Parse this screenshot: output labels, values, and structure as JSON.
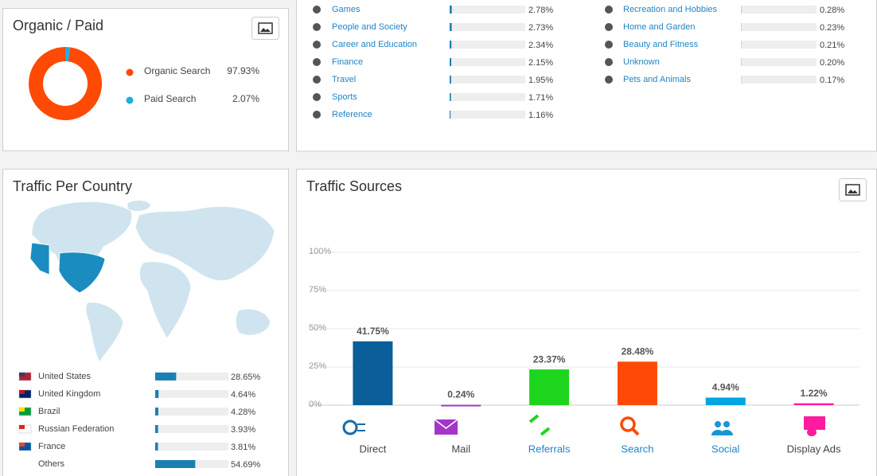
{
  "organic_paid": {
    "title": "Organic / Paid",
    "items": [
      {
        "name": "Organic Search",
        "value": 97.93,
        "value_label": "97.93%",
        "color": "#ff4a05"
      },
      {
        "name": "Paid Search",
        "value": 2.07,
        "value_label": "2.07%",
        "color": "#1ab0e0"
      }
    ]
  },
  "categories": {
    "color": "#1b7fb5",
    "columns": [
      [
        {
          "name": "Games",
          "value": 2.78,
          "value_label": "2.78%"
        },
        {
          "name": "People and Society",
          "value": 2.73,
          "value_label": "2.73%"
        },
        {
          "name": "Career and Education",
          "value": 2.34,
          "value_label": "2.34%"
        },
        {
          "name": "Finance",
          "value": 2.15,
          "value_label": "2.15%"
        },
        {
          "name": "Travel",
          "value": 1.95,
          "value_label": "1.95%"
        },
        {
          "name": "Sports",
          "value": 1.71,
          "value_label": "1.71%"
        },
        {
          "name": "Reference",
          "value": 1.16,
          "value_label": "1.16%"
        }
      ],
      [
        {
          "name": "Recreation and Hobbies",
          "value": 0.28,
          "value_label": "0.28%"
        },
        {
          "name": "Home and Garden",
          "value": 0.23,
          "value_label": "0.23%"
        },
        {
          "name": "Beauty and Fitness",
          "value": 0.21,
          "value_label": "0.21%"
        },
        {
          "name": "Unknown",
          "value": 0.2,
          "value_label": "0.20%"
        },
        {
          "name": "Pets and Animals",
          "value": 0.17,
          "value_label": "0.17%"
        }
      ]
    ]
  },
  "traffic_per_country": {
    "title": "Traffic Per Country",
    "color": "#1b7fb5",
    "rows": [
      {
        "name": "United States",
        "value": 28.65,
        "value_label": "28.65%"
      },
      {
        "name": "United Kingdom",
        "value": 4.64,
        "value_label": "4.64%"
      },
      {
        "name": "Brazil",
        "value": 4.28,
        "value_label": "4.28%"
      },
      {
        "name": "Russian Federation",
        "value": 3.93,
        "value_label": "3.93%"
      },
      {
        "name": "France",
        "value": 3.81,
        "value_label": "3.81%"
      },
      {
        "name": "Others",
        "value": 54.69,
        "value_label": "54.69%"
      }
    ]
  },
  "traffic_sources": {
    "title": "Traffic Sources",
    "ylim": [
      0,
      100
    ],
    "yticks": [
      {
        "value": 0,
        "label": "0%"
      },
      {
        "value": 25,
        "label": "25%"
      },
      {
        "value": 50,
        "label": "50%"
      },
      {
        "value": 75,
        "label": "75%"
      },
      {
        "value": 100,
        "label": "100%"
      }
    ],
    "items": [
      {
        "name": "Direct",
        "value": 41.75,
        "value_label": "41.75%",
        "color": "#0a5e99",
        "label_color": "#444444"
      },
      {
        "name": "Mail",
        "value": 0.24,
        "value_label": "0.24%",
        "color": "#a335c9",
        "label_color": "#444444"
      },
      {
        "name": "Referrals",
        "value": 23.37,
        "value_label": "23.37%",
        "color": "#1ed51e",
        "label_color": "#1e85c6"
      },
      {
        "name": "Search",
        "value": 28.48,
        "value_label": "28.48%",
        "color": "#ff4a05",
        "label_color": "#1e85c6"
      },
      {
        "name": "Social",
        "value": 4.94,
        "value_label": "4.94%",
        "color": "#00a6e0",
        "label_color": "#1e85c6"
      },
      {
        "name": "Display Ads",
        "value": 1.22,
        "value_label": "1.22%",
        "color": "#ff1ba0",
        "label_color": "#444444"
      }
    ]
  }
}
